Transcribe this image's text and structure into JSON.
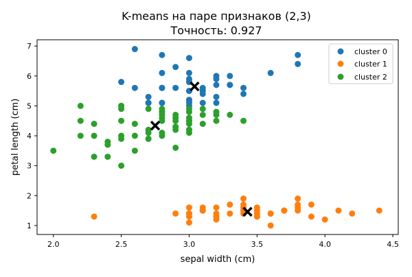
{
  "chart_data": {
    "type": "scatter",
    "title": "K-means на паре признаков (2,3)",
    "subtitle": "Точность: 0.927",
    "xlabel": "sepal width (cm)",
    "ylabel": "petal length (cm)",
    "xlim": [
      1.88,
      4.54
    ],
    "ylim": [
      0.7,
      7.21
    ],
    "xticks": [
      "2.0",
      "2.5",
      "3.0",
      "3.5",
      "4.0",
      "4.5"
    ],
    "yticks": [
      "1",
      "2",
      "3",
      "4",
      "5",
      "6",
      "7"
    ],
    "grid": false,
    "legend_position": "top-right",
    "series": [
      {
        "name": "cluster 0",
        "color": "#1f77b4",
        "points": [
          [
            3.3,
            6.0
          ],
          [
            2.7,
            5.1
          ],
          [
            3.0,
            5.9
          ],
          [
            2.9,
            5.6
          ],
          [
            3.0,
            5.8
          ],
          [
            3.0,
            6.6
          ],
          [
            2.9,
            6.3
          ],
          [
            2.5,
            5.8
          ],
          [
            3.6,
            6.1
          ],
          [
            3.2,
            5.1
          ],
          [
            2.7,
            5.3
          ],
          [
            3.0,
            5.5
          ],
          [
            2.8,
            5.1
          ],
          [
            3.2,
            5.3
          ],
          [
            3.0,
            5.5
          ],
          [
            3.8,
            6.7
          ],
          [
            2.6,
            6.9
          ],
          [
            3.2,
            5.7
          ],
          [
            2.8,
            6.7
          ],
          [
            3.3,
            5.7
          ],
          [
            3.2,
            6.0
          ],
          [
            2.8,
            5.6
          ],
          [
            3.0,
            5.8
          ],
          [
            2.8,
            6.1
          ],
          [
            3.8,
            6.4
          ],
          [
            2.8,
            5.6
          ],
          [
            2.8,
            5.1
          ],
          [
            2.6,
            5.6
          ],
          [
            3.0,
            6.1
          ],
          [
            3.4,
            5.6
          ],
          [
            3.1,
            5.5
          ],
          [
            3.1,
            5.4
          ],
          [
            3.1,
            5.6
          ],
          [
            3.1,
            5.1
          ],
          [
            2.7,
            5.1
          ],
          [
            3.2,
            5.9
          ],
          [
            3.3,
            5.7
          ],
          [
            3.0,
            5.2
          ],
          [
            3.0,
            5.2
          ],
          [
            3.4,
            5.4
          ],
          [
            3.0,
            5.1
          ],
          [
            2.7,
            5.1
          ],
          [
            3.0,
            5.0
          ]
        ]
      },
      {
        "name": "cluster 1",
        "color": "#ff7f0e",
        "points": [
          [
            3.5,
            1.4
          ],
          [
            3.0,
            1.4
          ],
          [
            3.2,
            1.3
          ],
          [
            3.1,
            1.5
          ],
          [
            3.6,
            1.4
          ],
          [
            3.9,
            1.7
          ],
          [
            3.4,
            1.4
          ],
          [
            3.4,
            1.5
          ],
          [
            2.9,
            1.4
          ],
          [
            3.1,
            1.5
          ],
          [
            3.7,
            1.5
          ],
          [
            3.4,
            1.6
          ],
          [
            3.0,
            1.4
          ],
          [
            3.0,
            1.1
          ],
          [
            4.0,
            1.2
          ],
          [
            4.4,
            1.5
          ],
          [
            3.9,
            1.3
          ],
          [
            3.5,
            1.4
          ],
          [
            3.8,
            1.7
          ],
          [
            3.8,
            1.5
          ],
          [
            3.4,
            1.7
          ],
          [
            3.7,
            1.5
          ],
          [
            3.6,
            1.0
          ],
          [
            3.3,
            1.7
          ],
          [
            3.4,
            1.9
          ],
          [
            3.0,
            1.6
          ],
          [
            3.4,
            1.6
          ],
          [
            3.5,
            1.5
          ],
          [
            3.4,
            1.4
          ],
          [
            3.2,
            1.6
          ],
          [
            3.1,
            1.6
          ],
          [
            3.4,
            1.5
          ],
          [
            4.1,
            1.5
          ],
          [
            4.2,
            1.4
          ],
          [
            3.1,
            1.5
          ],
          [
            3.2,
            1.2
          ],
          [
            3.5,
            1.3
          ],
          [
            3.6,
            1.4
          ],
          [
            3.0,
            1.3
          ],
          [
            3.4,
            1.5
          ],
          [
            3.5,
            1.3
          ],
          [
            2.3,
            1.3
          ],
          [
            3.2,
            1.3
          ],
          [
            3.5,
            1.6
          ],
          [
            3.8,
            1.9
          ],
          [
            3.0,
            1.4
          ],
          [
            3.8,
            1.6
          ],
          [
            3.2,
            1.4
          ],
          [
            3.7,
            1.5
          ],
          [
            3.3,
            1.4
          ]
        ]
      },
      {
        "name": "cluster 2",
        "color": "#2ca02c",
        "points": [
          [
            3.2,
            4.7
          ],
          [
            3.2,
            4.5
          ],
          [
            3.1,
            4.9
          ],
          [
            2.3,
            4.0
          ],
          [
            2.8,
            4.6
          ],
          [
            2.8,
            4.5
          ],
          [
            3.3,
            4.7
          ],
          [
            2.4,
            3.3
          ],
          [
            2.9,
            4.6
          ],
          [
            2.7,
            3.9
          ],
          [
            2.0,
            3.5
          ],
          [
            3.0,
            4.2
          ],
          [
            2.2,
            4.0
          ],
          [
            2.9,
            4.7
          ],
          [
            2.9,
            3.6
          ],
          [
            3.1,
            4.4
          ],
          [
            3.0,
            4.5
          ],
          [
            2.7,
            4.1
          ],
          [
            2.2,
            4.5
          ],
          [
            2.5,
            3.9
          ],
          [
            3.2,
            4.8
          ],
          [
            2.8,
            4.0
          ],
          [
            2.5,
            4.9
          ],
          [
            2.8,
            4.7
          ],
          [
            2.9,
            4.3
          ],
          [
            3.0,
            4.4
          ],
          [
            2.8,
            4.8
          ],
          [
            2.9,
            4.5
          ],
          [
            2.6,
            3.5
          ],
          [
            2.4,
            3.8
          ],
          [
            2.4,
            3.7
          ],
          [
            2.7,
            3.9
          ],
          [
            3.0,
            4.5
          ],
          [
            3.4,
            4.5
          ],
          [
            3.1,
            4.7
          ],
          [
            2.3,
            4.4
          ],
          [
            3.0,
            4.1
          ],
          [
            2.5,
            4.0
          ],
          [
            2.6,
            4.4
          ],
          [
            3.0,
            4.6
          ],
          [
            2.6,
            4.0
          ],
          [
            2.3,
            3.3
          ],
          [
            2.7,
            4.2
          ],
          [
            3.0,
            4.2
          ],
          [
            2.9,
            4.2
          ],
          [
            2.9,
            4.3
          ],
          [
            2.5,
            3.0
          ],
          [
            2.8,
            4.1
          ],
          [
            2.5,
            4.5
          ],
          [
            2.5,
            5.0
          ],
          [
            2.5,
            5.0
          ],
          [
            2.2,
            5.0
          ],
          [
            2.8,
            4.9
          ],
          [
            2.7,
            4.9
          ],
          [
            2.8,
            4.8
          ],
          [
            3.0,
            4.9
          ],
          [
            3.0,
            4.8
          ]
        ]
      }
    ],
    "centroids": {
      "color": "#000000",
      "marker": "x",
      "points": [
        [
          3.04,
          5.65
        ],
        [
          3.43,
          1.46
        ],
        [
          2.75,
          4.34
        ]
      ]
    }
  }
}
